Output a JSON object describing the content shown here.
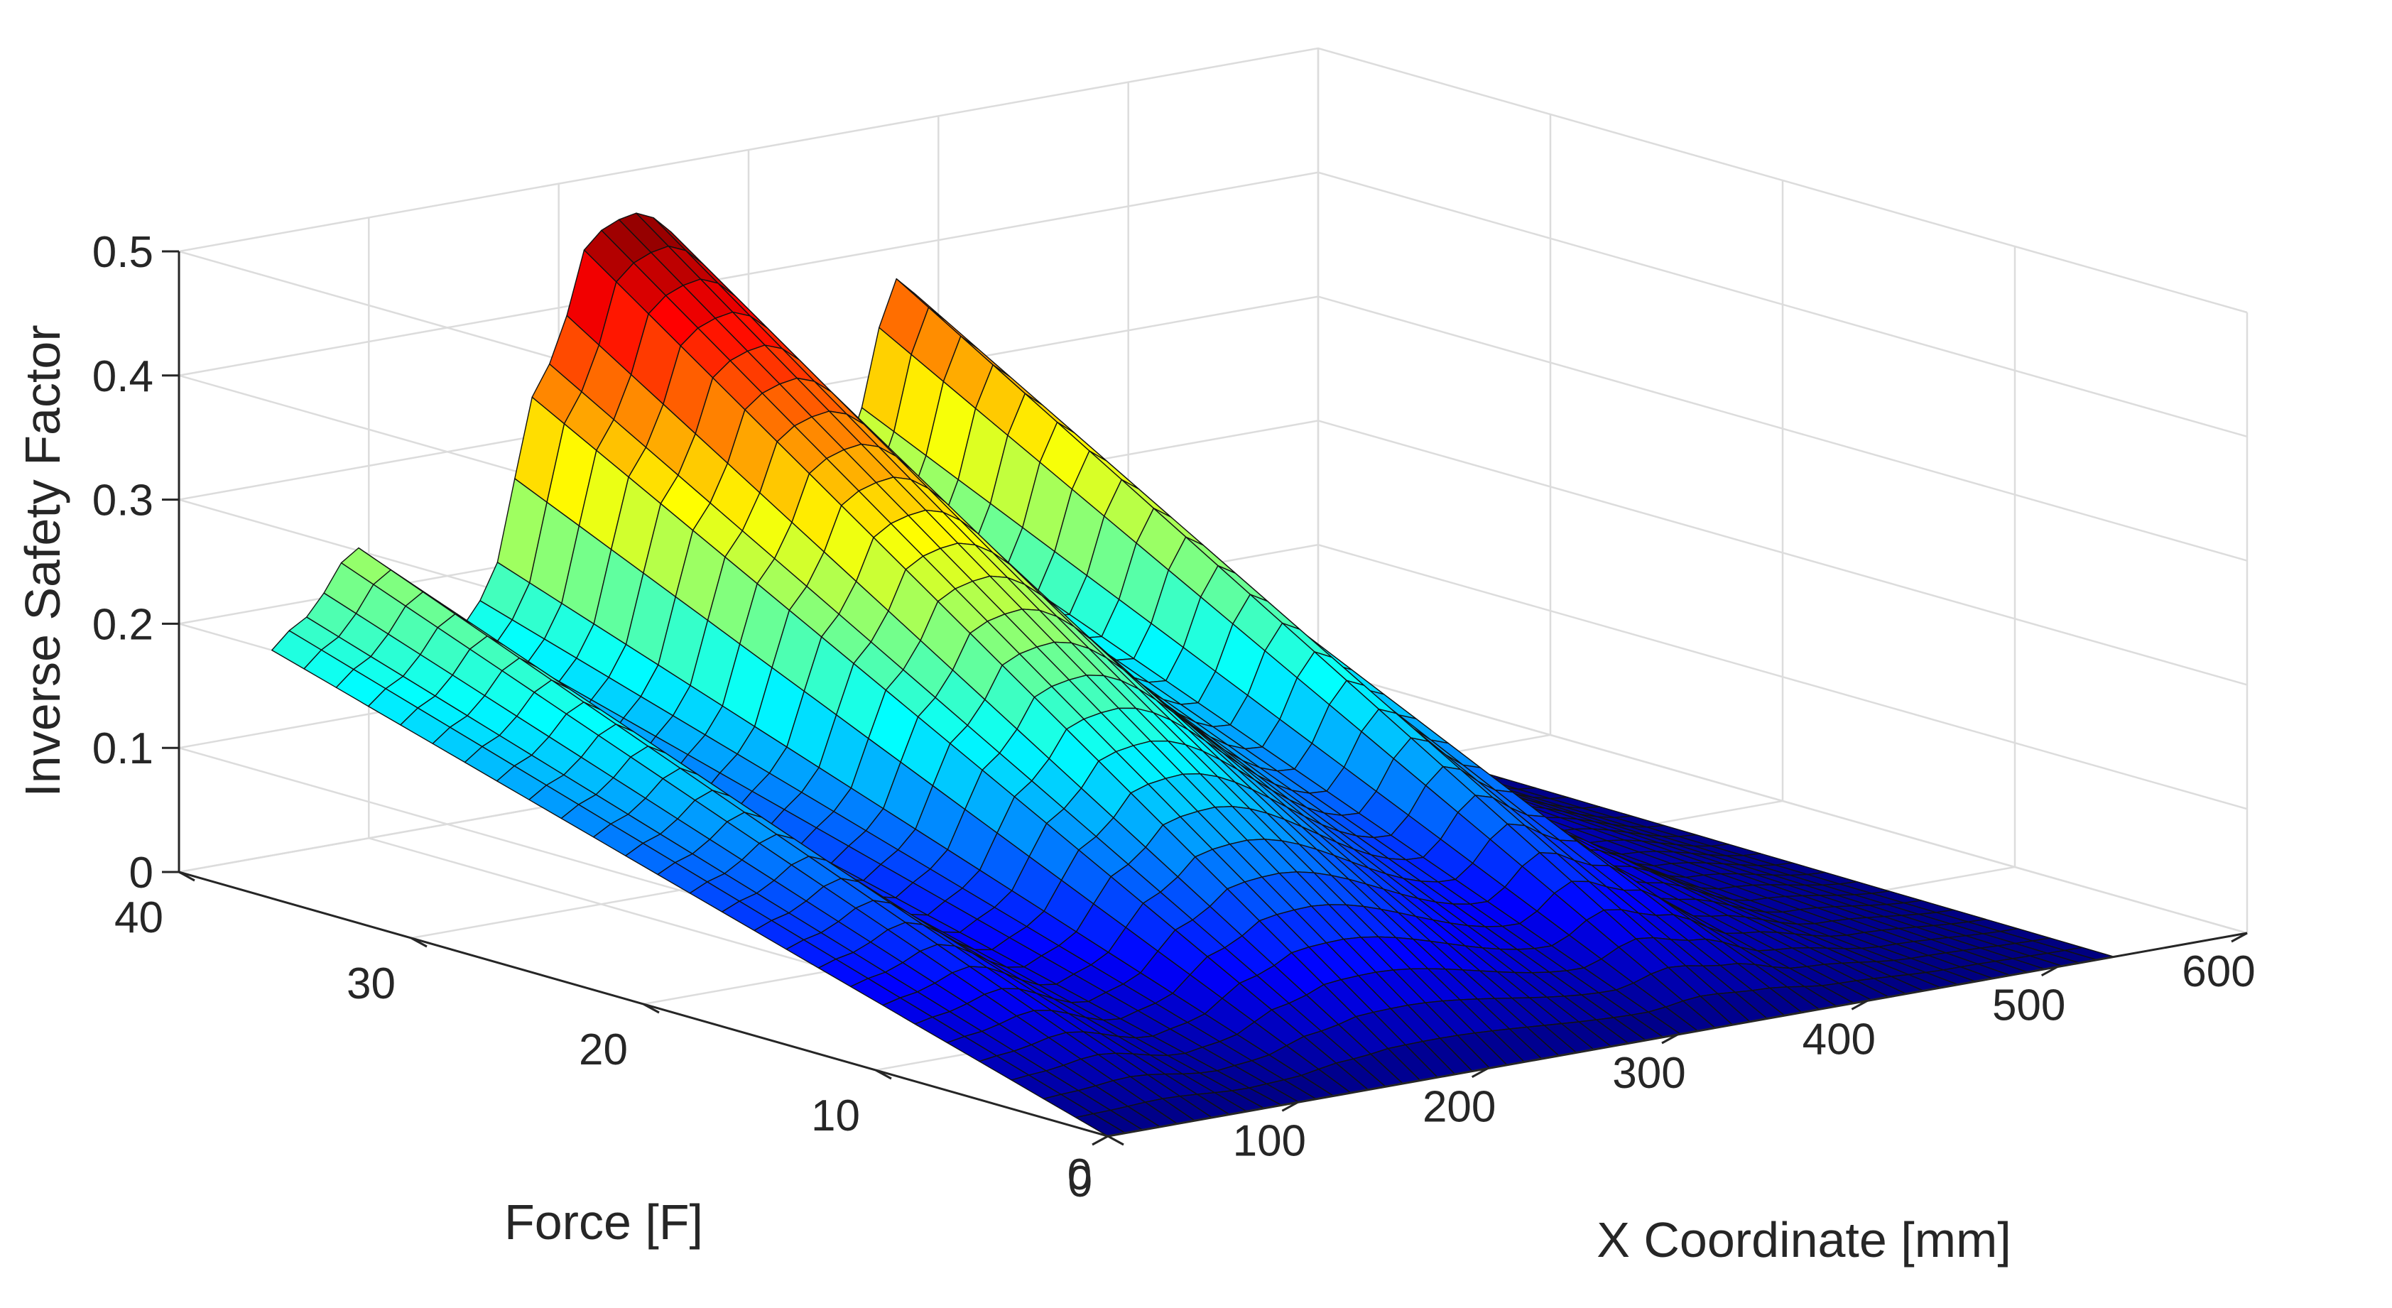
{
  "chart_data": {
    "type": "surface",
    "title": "",
    "xlabel": "X Coordinate [mm]",
    "ylabel": "Force [F]",
    "zlabel": "Inverse Safety Factor",
    "xlim": [
      0,
      600
    ],
    "ylim": [
      0,
      40
    ],
    "zlim": [
      0,
      0.5
    ],
    "xticks": [
      "0",
      "100",
      "200",
      "300",
      "400",
      "500",
      "600"
    ],
    "yticks": [
      "0",
      "10",
      "20",
      "30",
      "40"
    ],
    "zticks": [
      "0",
      "0.1",
      "0.2",
      "0.3",
      "0.4",
      "0.5"
    ],
    "grid": "on",
    "colormap": "jet",
    "x_range": [
      0,
      530
    ],
    "y_range": [
      0,
      36
    ],
    "peaks_at_max_force": [
      {
        "x": 15,
        "z": 0.22
      },
      {
        "x": 45,
        "z": 0.27
      },
      {
        "x": 110,
        "z": 0.21
      },
      {
        "x": 145,
        "z": 0.39
      },
      {
        "x": 170,
        "z": 0.49
      },
      {
        "x": 190,
        "z": 0.5
      },
      {
        "x": 330,
        "z": 0.41
      }
    ],
    "valleys_at_max_force": [
      {
        "x": 90,
        "z": 0.17
      },
      {
        "x": 300,
        "z": 0.27
      }
    ]
  }
}
